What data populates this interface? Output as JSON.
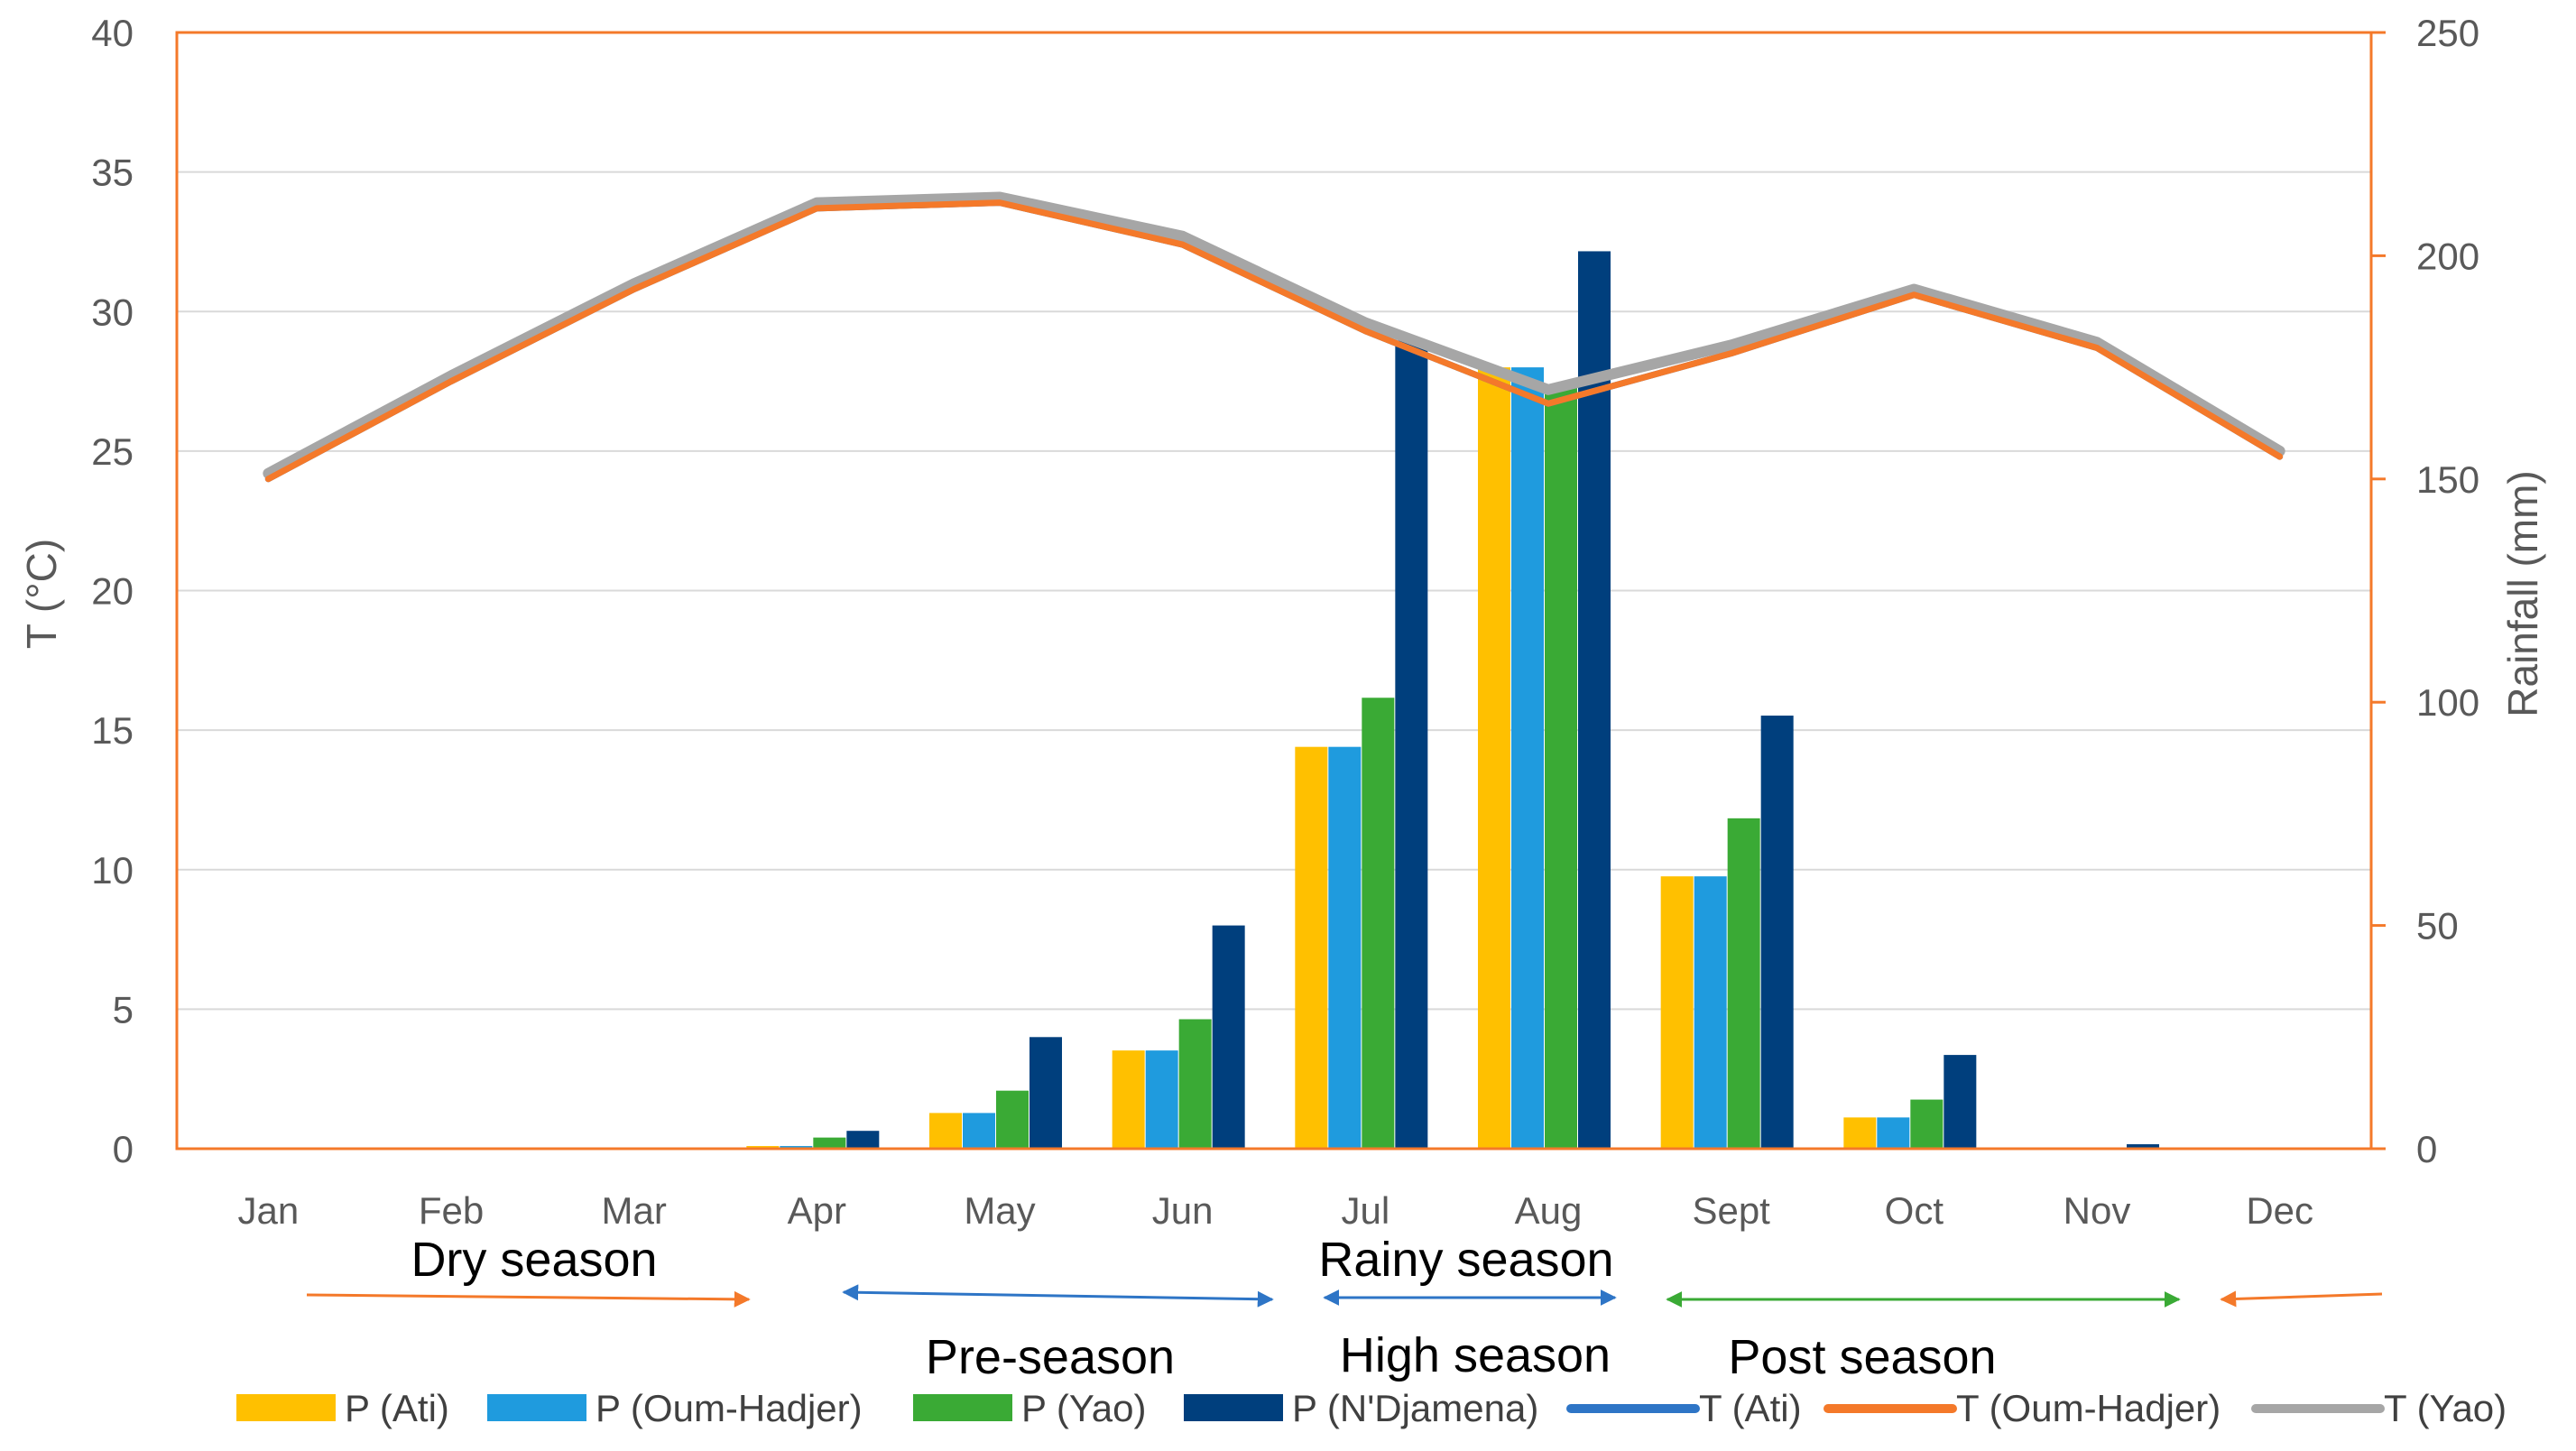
{
  "chart_data": {
    "type": "bar+line",
    "categories": [
      "Jan",
      "Feb",
      "Mar",
      "Apr",
      "May",
      "Jun",
      "Jul",
      "Aug",
      "Sept",
      "Oct",
      "Nov",
      "Dec"
    ],
    "left_axis": {
      "label": "T (°C)",
      "ylim": [
        0,
        40
      ],
      "ticks": [
        "0",
        "5",
        "10",
        "15",
        "20",
        "25",
        "30",
        "35",
        "40"
      ]
    },
    "right_axis": {
      "label": "Rainfall (mm)",
      "ylim": [
        0,
        250
      ],
      "ticks": [
        "0",
        "50",
        "100",
        "150",
        "200",
        "250"
      ]
    },
    "bar_series": [
      {
        "name": "P (Ati)",
        "color": "#FFC000",
        "values": [
          0,
          0,
          0,
          0.6,
          8,
          22,
          90,
          175,
          61,
          7,
          0,
          0
        ]
      },
      {
        "name": "P (Oum-Hadjer)",
        "color": "#1F9BDE",
        "values": [
          0,
          0,
          0,
          0.6,
          8,
          22,
          90,
          175,
          61,
          7,
          0,
          0
        ]
      },
      {
        "name": "P (Yao)",
        "color": "#3AAA35",
        "values": [
          0,
          0,
          0,
          2.5,
          13,
          29,
          101,
          171,
          74,
          11,
          0,
          0
        ]
      },
      {
        "name": "P (N'Djamena)",
        "color": "#003F7D",
        "values": [
          0,
          0,
          0,
          4,
          25,
          50,
          181,
          201,
          97,
          21,
          1,
          0
        ]
      }
    ],
    "line_series": [
      {
        "name": "T (Ati)",
        "color": "#2E75C6",
        "values": [
          24.0,
          27.5,
          30.8,
          33.7,
          33.9,
          32.4,
          29.3,
          26.7,
          28.5,
          30.6,
          28.7,
          24.8
        ]
      },
      {
        "name": "T (Oum-Hadjer)",
        "color": "#F4792A",
        "values": [
          24.0,
          27.5,
          30.8,
          33.7,
          33.9,
          32.4,
          29.3,
          26.7,
          28.5,
          30.6,
          28.7,
          24.8
        ]
      },
      {
        "name": "T (Yao)",
        "color": "#A6A6A6",
        "values": [
          24.2,
          27.7,
          31.0,
          33.9,
          34.1,
          32.7,
          29.6,
          27.2,
          28.8,
          30.8,
          28.9,
          25.0
        ]
      }
    ],
    "legend_position": "bottom",
    "grid": true,
    "seasons": [
      {
        "label": "Dry season",
        "color": "#F4792A"
      },
      {
        "label": "Pre-season",
        "color": "#2E75C6"
      },
      {
        "label": "Rainy season",
        "color": "#2E75C6"
      },
      {
        "label": "High season",
        "color": "#2E75C6"
      },
      {
        "label": "Post season",
        "color": "#3AAA35"
      }
    ],
    "frame_color": "#F4792A",
    "grid_color": "#D9D9D9"
  }
}
